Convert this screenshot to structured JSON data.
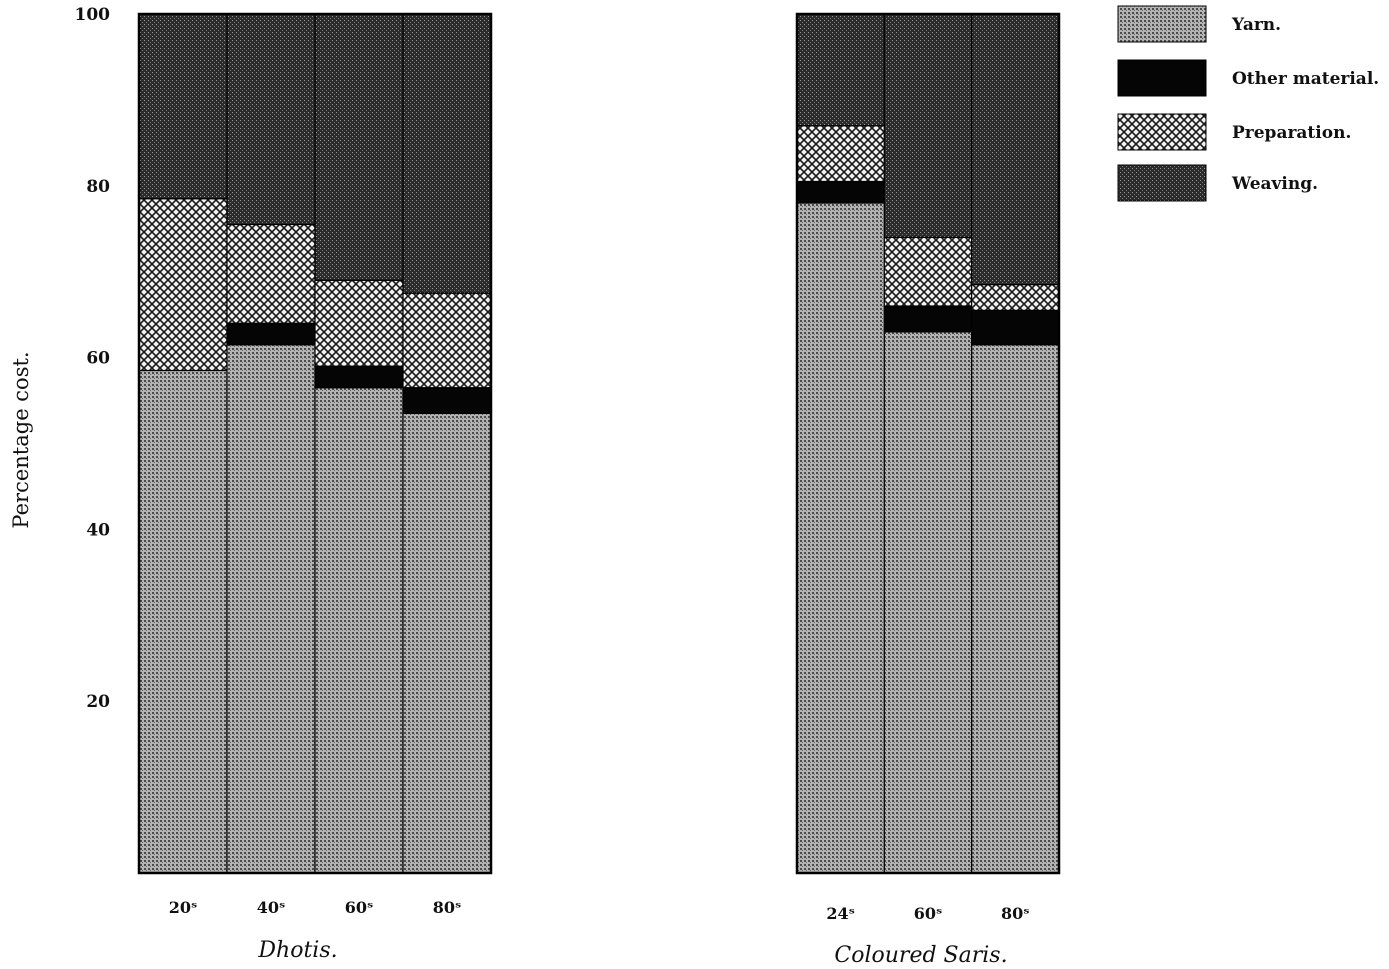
{
  "chart_data": {
    "type": "bar",
    "stacked": true,
    "ylabel": "Percentage cost.",
    "ylim": [
      0,
      100
    ],
    "yticks": [
      20,
      40,
      60,
      80,
      100
    ],
    "legend": {
      "placement": "top-right",
      "items": [
        {
          "label": "Yarn.",
          "key": "yarn"
        },
        {
          "label": "Other material.",
          "key": "other"
        },
        {
          "label": "Preparation.",
          "key": "prep"
        },
        {
          "label": "Weaving.",
          "key": "weaving"
        }
      ]
    },
    "segment_order": [
      "yarn",
      "other",
      "prep",
      "weaving"
    ],
    "colors": {
      "yarn": "#8c8c8c",
      "other": "#050505",
      "prep": "#bdbdbd",
      "weaving": "#3a3a3a"
    },
    "groups": [
      {
        "name": "dhotis",
        "caption": "Dhotis.",
        "categories": [
          "20ˢ",
          "40ˢ",
          "60ˢ",
          "80ˢ"
        ],
        "series": [
          {
            "name": "Yarn.",
            "values": [
              58.5,
              61.5,
              56.5,
              53.5
            ]
          },
          {
            "name": "Other material.",
            "values": [
              0,
              2.5,
              2.5,
              3
            ]
          },
          {
            "name": "Preparation.",
            "values": [
              20,
              11.5,
              10,
              11
            ]
          },
          {
            "name": "Weaving.",
            "values": [
              21.5,
              24.5,
              31,
              32.5
            ]
          }
        ]
      },
      {
        "name": "saris",
        "caption": "Coloured Saris.",
        "categories": [
          "24ˢ",
          "60ˢ",
          "80ˢ"
        ],
        "series": [
          {
            "name": "Yarn.",
            "values": [
              78,
              63,
              61.5
            ]
          },
          {
            "name": "Other material.",
            "values": [
              2.5,
              3,
              4
            ]
          },
          {
            "name": "Preparation.",
            "values": [
              6.5,
              8,
              3
            ]
          },
          {
            "name": "Weaving.",
            "values": [
              13,
              26,
              31.5
            ]
          }
        ]
      }
    ]
  }
}
